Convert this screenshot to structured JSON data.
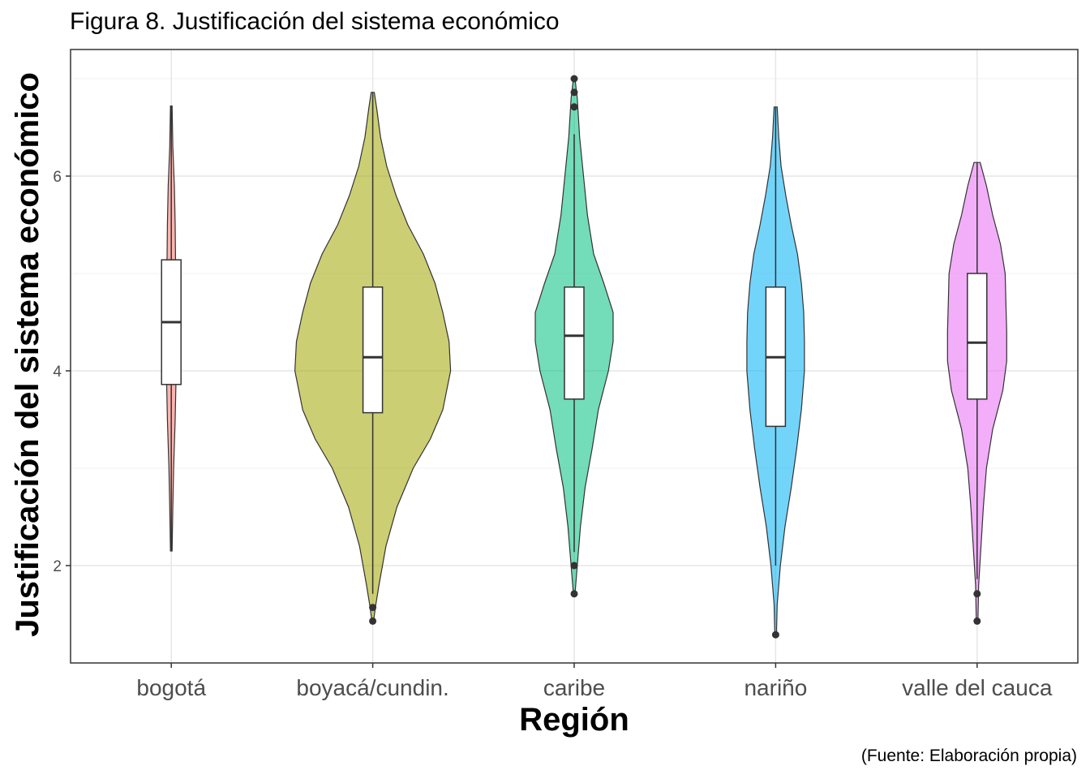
{
  "title": "Figura 8. Justificación del sistema económico",
  "caption": "(Fuente: Elaboración propia)",
  "chart_data": {
    "type": "violin",
    "xlabel": "Región",
    "ylabel": "Justificación del sistema económico",
    "ylim": [
      1.0,
      7.3
    ],
    "yticks": [
      2,
      4,
      6
    ],
    "grid": true,
    "legend": "none",
    "categories": [
      "bogotá",
      "boyacá/cundin.",
      "caribe",
      "nariño",
      "valle del cauca"
    ],
    "series": [
      {
        "category": "bogotá",
        "color": "#F8766D",
        "min": 2.15,
        "max": 6.72,
        "box": {
          "q1": 3.86,
          "median": 4.5,
          "q3": 5.14,
          "whisker_low": 2.15,
          "whisker_high": 6.72
        },
        "outliers": [],
        "density": [
          [
            2.15,
            0.01
          ],
          [
            2.6,
            0.02
          ],
          [
            3.0,
            0.03
          ],
          [
            3.5,
            0.05
          ],
          [
            3.9,
            0.06
          ],
          [
            4.3,
            0.06
          ],
          [
            4.7,
            0.06
          ],
          [
            5.1,
            0.055
          ],
          [
            5.5,
            0.05
          ],
          [
            5.9,
            0.04
          ],
          [
            6.3,
            0.02
          ],
          [
            6.72,
            0.01
          ]
        ]
      },
      {
        "category": "boyacá/cundin.",
        "color": "#A3A500",
        "min": 1.43,
        "max": 6.86,
        "box": {
          "q1": 3.57,
          "median": 4.14,
          "q3": 4.86,
          "whisker_low": 1.71,
          "whisker_high": 6.86
        },
        "outliers": [
          1.57,
          1.43
        ],
        "density": [
          [
            1.43,
            0.01
          ],
          [
            1.6,
            0.04
          ],
          [
            1.8,
            0.08
          ],
          [
            2.2,
            0.17
          ],
          [
            2.6,
            0.31
          ],
          [
            3.0,
            0.52
          ],
          [
            3.3,
            0.74
          ],
          [
            3.6,
            0.9
          ],
          [
            4.0,
            1.0
          ],
          [
            4.3,
            0.98
          ],
          [
            4.6,
            0.9
          ],
          [
            4.9,
            0.8
          ],
          [
            5.2,
            0.65
          ],
          [
            5.5,
            0.45
          ],
          [
            5.8,
            0.3
          ],
          [
            6.1,
            0.18
          ],
          [
            6.4,
            0.1
          ],
          [
            6.7,
            0.05
          ],
          [
            6.86,
            0.02
          ]
        ]
      },
      {
        "category": "caribe",
        "color": "#00BF7D",
        "min": 1.71,
        "max": 7.0,
        "box": {
          "q1": 3.71,
          "median": 4.36,
          "q3": 4.86,
          "whisker_low": 2.14,
          "whisker_high": 6.43
        },
        "outliers": [
          2.0,
          1.71,
          6.71,
          6.86,
          7.0
        ],
        "density": [
          [
            1.71,
            0.01
          ],
          [
            2.0,
            0.04
          ],
          [
            2.4,
            0.08
          ],
          [
            2.8,
            0.14
          ],
          [
            3.2,
            0.23
          ],
          [
            3.6,
            0.31
          ],
          [
            4.0,
            0.44
          ],
          [
            4.3,
            0.5
          ],
          [
            4.6,
            0.5
          ],
          [
            4.9,
            0.38
          ],
          [
            5.2,
            0.25
          ],
          [
            5.6,
            0.17
          ],
          [
            6.0,
            0.12
          ],
          [
            6.4,
            0.07
          ],
          [
            6.8,
            0.04
          ],
          [
            7.0,
            0.01
          ]
        ]
      },
      {
        "category": "nariño",
        "color": "#00B0F6",
        "min": 1.29,
        "max": 6.71,
        "box": {
          "q1": 3.43,
          "median": 4.14,
          "q3": 4.86,
          "whisker_low": 2.0,
          "whisker_high": 6.71
        },
        "outliers": [
          1.29
        ],
        "density": [
          [
            1.29,
            0.01
          ],
          [
            1.6,
            0.02
          ],
          [
            2.0,
            0.06
          ],
          [
            2.4,
            0.12
          ],
          [
            2.8,
            0.2
          ],
          [
            3.2,
            0.27
          ],
          [
            3.6,
            0.33
          ],
          [
            4.0,
            0.37
          ],
          [
            4.3,
            0.37
          ],
          [
            4.6,
            0.36
          ],
          [
            4.9,
            0.33
          ],
          [
            5.2,
            0.28
          ],
          [
            5.5,
            0.2
          ],
          [
            5.8,
            0.13
          ],
          [
            6.1,
            0.07
          ],
          [
            6.4,
            0.04
          ],
          [
            6.71,
            0.02
          ]
        ]
      },
      {
        "category": "valle del cauca",
        "color": "#E76BF3",
        "min": 1.43,
        "max": 6.14,
        "box": {
          "q1": 3.71,
          "median": 4.29,
          "q3": 5.0,
          "whisker_low": 1.86,
          "whisker_high": 6.14
        },
        "outliers": [
          1.71,
          1.43
        ],
        "density": [
          [
            1.43,
            0.01
          ],
          [
            1.8,
            0.02
          ],
          [
            2.2,
            0.05
          ],
          [
            2.6,
            0.08
          ],
          [
            3.0,
            0.12
          ],
          [
            3.4,
            0.2
          ],
          [
            3.8,
            0.33
          ],
          [
            4.1,
            0.38
          ],
          [
            4.4,
            0.38
          ],
          [
            4.7,
            0.37
          ],
          [
            5.0,
            0.36
          ],
          [
            5.3,
            0.3
          ],
          [
            5.6,
            0.2
          ],
          [
            5.9,
            0.12
          ],
          [
            6.14,
            0.04
          ]
        ]
      }
    ]
  }
}
